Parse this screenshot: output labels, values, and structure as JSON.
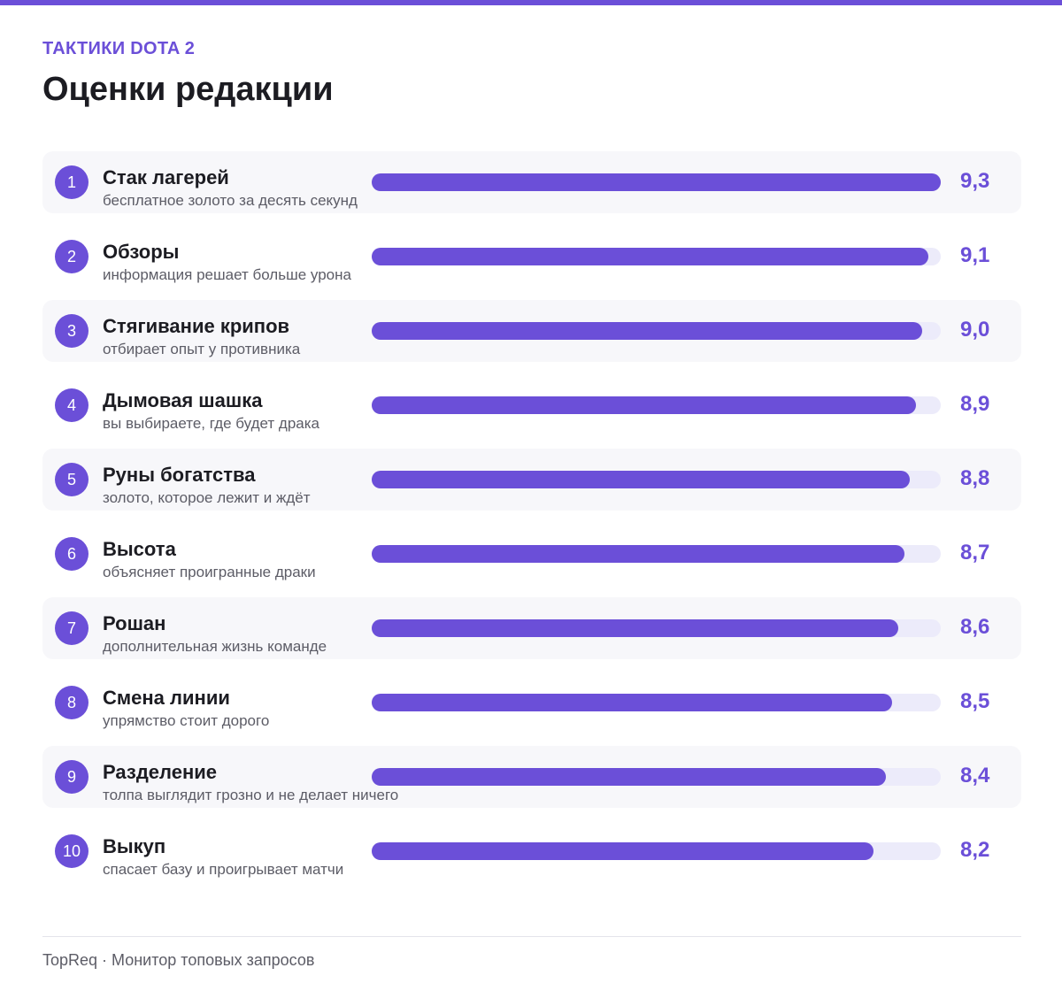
{
  "header": {
    "kicker": "ТАКТИКИ DOTA 2",
    "title": "Оценки редакции"
  },
  "colors": {
    "accent": "#6b4fd8",
    "track": "#ecebfa",
    "row_alt": "#f7f7fa"
  },
  "scale_max": 9.3,
  "items": [
    {
      "rank": "1",
      "name": "Стак лагерей",
      "desc": "бесплатное золото за десять секунд",
      "score": "9,3",
      "value": 9.3
    },
    {
      "rank": "2",
      "name": "Обзоры",
      "desc": "информация решает больше урона",
      "score": "9,1",
      "value": 9.1
    },
    {
      "rank": "3",
      "name": "Стягивание крипов",
      "desc": "отбирает опыт у противника",
      "score": "9,0",
      "value": 9.0
    },
    {
      "rank": "4",
      "name": "Дымовая шашка",
      "desc": "вы выбираете, где будет драка",
      "score": "8,9",
      "value": 8.9
    },
    {
      "rank": "5",
      "name": "Руны богатства",
      "desc": "золото, которое лежит и ждёт",
      "score": "8,8",
      "value": 8.8
    },
    {
      "rank": "6",
      "name": "Высота",
      "desc": "объясняет проигранные драки",
      "score": "8,7",
      "value": 8.7
    },
    {
      "rank": "7",
      "name": "Рошан",
      "desc": "дополнительная жизнь команде",
      "score": "8,6",
      "value": 8.6
    },
    {
      "rank": "8",
      "name": "Смена линии",
      "desc": "упрямство стоит дорого",
      "score": "8,5",
      "value": 8.5
    },
    {
      "rank": "9",
      "name": "Разделение",
      "desc": "толпа выглядит грозно и не делает ничего",
      "score": "8,4",
      "value": 8.4
    },
    {
      "rank": "10",
      "name": "Выкуп",
      "desc": "спасает базу и проигрывает матчи",
      "score": "8,2",
      "value": 8.2
    }
  ],
  "footer": {
    "text": "TopReq · Монитор топовых запросов"
  }
}
